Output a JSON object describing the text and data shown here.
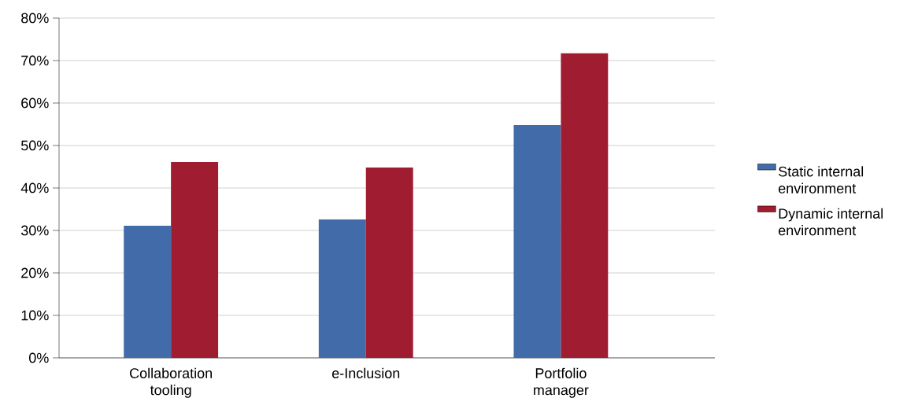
{
  "chart_data": {
    "type": "bar",
    "categories": [
      "Collaboration tooling",
      "e-Inclusion",
      "Portfolio manager"
    ],
    "series": [
      {
        "name": "Static internal environment",
        "color": "#426ca9",
        "values": [
          31.1,
          32.6,
          54.8
        ]
      },
      {
        "name": "Dynamic internal environment",
        "color": "#a01c30",
        "values": [
          46.1,
          44.8,
          71.7
        ]
      }
    ],
    "ylim": [
      0,
      80
    ],
    "yticks": [
      {
        "value": 0,
        "label": "0%"
      },
      {
        "value": 10,
        "label": "10%"
      },
      {
        "value": 20,
        "label": "20%"
      },
      {
        "value": 30,
        "label": "30%"
      },
      {
        "value": 40,
        "label": "40%"
      },
      {
        "value": 50,
        "label": "50%"
      },
      {
        "value": 60,
        "label": "60%"
      },
      {
        "value": 70,
        "label": "70%"
      },
      {
        "value": 80,
        "label": "80%"
      }
    ],
    "grid": "y",
    "legend": "right"
  }
}
